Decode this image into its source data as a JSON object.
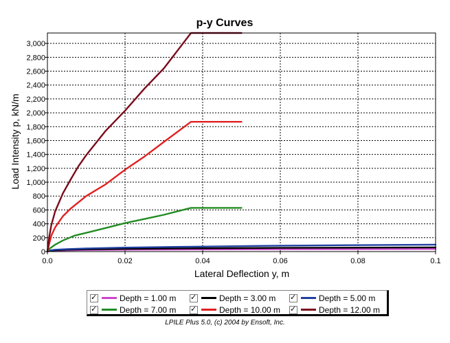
{
  "chart_data": {
    "type": "line",
    "title": "p-y Curves",
    "xlabel": "Lateral Deflection y, m",
    "ylabel": "Load Intensity p, kN/m",
    "xlim": [
      0,
      0.1
    ],
    "ylim": [
      0,
      3150
    ],
    "xticks": [
      0,
      0.02,
      0.04,
      0.06,
      0.08,
      0.1
    ],
    "xtick_labels": [
      "0.0",
      "0.02",
      "0.04",
      "0.06",
      "0.08",
      "0.1"
    ],
    "yticks": [
      0,
      200,
      400,
      600,
      800,
      1000,
      1200,
      1400,
      1600,
      1800,
      2000,
      2200,
      2400,
      2600,
      2800,
      3000
    ],
    "ytick_labels": [
      "0",
      "200",
      "400",
      "600",
      "800",
      "1,000",
      "1,200",
      "1,400",
      "1,600",
      "1,800",
      "2,000",
      "2,200",
      "2,400",
      "2,600",
      "2,800",
      "3,000"
    ],
    "grid": true,
    "legend_position": "bottom",
    "series": [
      {
        "name": "Depth = 1.00 m",
        "color": "#cc44cc",
        "points": [
          [
            0,
            0
          ],
          [
            0.0005,
            8
          ],
          [
            0.002,
            14
          ],
          [
            0.005,
            19
          ],
          [
            0.01,
            23
          ],
          [
            0.02,
            27
          ],
          [
            0.037,
            31
          ],
          [
            0.06,
            34
          ],
          [
            0.1,
            38
          ]
        ]
      },
      {
        "name": "Depth = 3.00 m",
        "color": "#000000",
        "points": [
          [
            0,
            0
          ],
          [
            0.0005,
            12
          ],
          [
            0.002,
            20
          ],
          [
            0.005,
            27
          ],
          [
            0.01,
            33
          ],
          [
            0.02,
            40
          ],
          [
            0.037,
            47
          ],
          [
            0.06,
            53
          ],
          [
            0.1,
            60
          ]
        ]
      },
      {
        "name": "Depth = 5.00 m",
        "color": "#1f3fa0",
        "points": [
          [
            0,
            0
          ],
          [
            0.0005,
            16
          ],
          [
            0.002,
            27
          ],
          [
            0.005,
            36
          ],
          [
            0.01,
            45
          ],
          [
            0.02,
            57
          ],
          [
            0.037,
            70
          ],
          [
            0.06,
            85
          ],
          [
            0.1,
            100
          ]
        ]
      },
      {
        "name": "Depth = 7.00 m",
        "color": "#228b22",
        "points": [
          [
            0,
            0
          ],
          [
            0.0005,
            40
          ],
          [
            0.002,
            100
          ],
          [
            0.004,
            160
          ],
          [
            0.007,
            230
          ],
          [
            0.01,
            270
          ],
          [
            0.015,
            340
          ],
          [
            0.02,
            410
          ],
          [
            0.025,
            470
          ],
          [
            0.03,
            530
          ],
          [
            0.037,
            630
          ],
          [
            0.05,
            630
          ]
        ]
      },
      {
        "name": "Depth = 10.00 m",
        "color": "#e02020",
        "points": [
          [
            0,
            0
          ],
          [
            0.0005,
            120
          ],
          [
            0.001,
            230
          ],
          [
            0.002,
            350
          ],
          [
            0.004,
            510
          ],
          [
            0.006,
            620
          ],
          [
            0.008,
            710
          ],
          [
            0.01,
            800
          ],
          [
            0.015,
            970
          ],
          [
            0.02,
            1180
          ],
          [
            0.025,
            1370
          ],
          [
            0.03,
            1580
          ],
          [
            0.037,
            1870
          ],
          [
            0.05,
            1870
          ]
        ]
      },
      {
        "name": "Depth = 12.00 m",
        "color": "#7a0a1a",
        "points": [
          [
            0,
            0
          ],
          [
            0.0005,
            220
          ],
          [
            0.001,
            380
          ],
          [
            0.002,
            580
          ],
          [
            0.004,
            840
          ],
          [
            0.006,
            1040
          ],
          [
            0.008,
            1230
          ],
          [
            0.01,
            1390
          ],
          [
            0.015,
            1740
          ],
          [
            0.02,
            2030
          ],
          [
            0.025,
            2350
          ],
          [
            0.03,
            2640
          ],
          [
            0.037,
            3150
          ],
          [
            0.05,
            3150
          ]
        ]
      }
    ]
  },
  "footer": {
    "credit": "LPILE Plus 5.0, (c) 2004 by Ensoft, Inc."
  }
}
